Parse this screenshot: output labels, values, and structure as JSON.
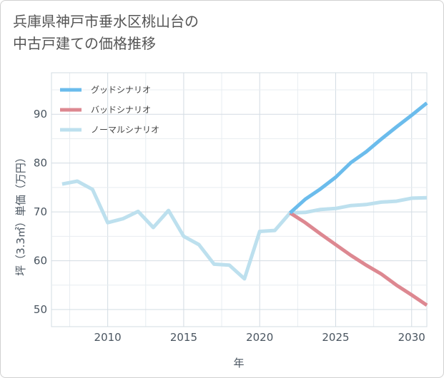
{
  "title_line1": "兵庫県神戸市垂水区桃山台の",
  "title_line2": "中古戸建ての価格推移",
  "chart_data": {
    "type": "line",
    "xlabel": "年",
    "ylabel": "坪（3.3㎡）単価（万円）",
    "xlim": [
      2006.3,
      2031
    ],
    "ylim": [
      46.5,
      98.5
    ],
    "xticks": [
      2010,
      2015,
      2020,
      2025,
      2030
    ],
    "yticks": [
      50,
      60,
      70,
      80,
      90
    ],
    "grid": true,
    "legend_position": "top-left",
    "series": [
      {
        "name": "グッドシナリオ",
        "color": "#6bbcec",
        "x": [
          2022,
          2023,
          2024,
          2025,
          2026,
          2027,
          2028,
          2029,
          2030,
          2031
        ],
        "y": [
          69.8,
          72.6,
          74.7,
          77.1,
          80.1,
          82.3,
          84.9,
          87.4,
          89.8,
          92.3
        ]
      },
      {
        "name": "バッドシナリオ",
        "color": "#dd8891",
        "x": [
          2022,
          2023,
          2024,
          2025,
          2026,
          2027,
          2028,
          2029,
          2030,
          2031
        ],
        "y": [
          69.8,
          67.8,
          65.5,
          63.3,
          61.1,
          59.1,
          57.3,
          55.0,
          53.0,
          50.9
        ]
      },
      {
        "name": "ノーマルシナリオ",
        "color": "#bde0ee",
        "x": [
          2007,
          2008,
          2009,
          2010,
          2011,
          2012,
          2013,
          2014,
          2015,
          2016,
          2017,
          2018,
          2019,
          2020,
          2021,
          2022,
          2023,
          2024,
          2025,
          2026,
          2027,
          2028,
          2029,
          2030,
          2031
        ],
        "y": [
          75.7,
          76.3,
          74.6,
          67.8,
          68.6,
          70.1,
          66.8,
          70.3,
          65.0,
          63.3,
          59.3,
          59.1,
          56.3,
          66.0,
          66.2,
          69.8,
          69.9,
          70.5,
          70.7,
          71.3,
          71.5,
          72.0,
          72.2,
          72.8,
          72.9
        ]
      }
    ]
  }
}
